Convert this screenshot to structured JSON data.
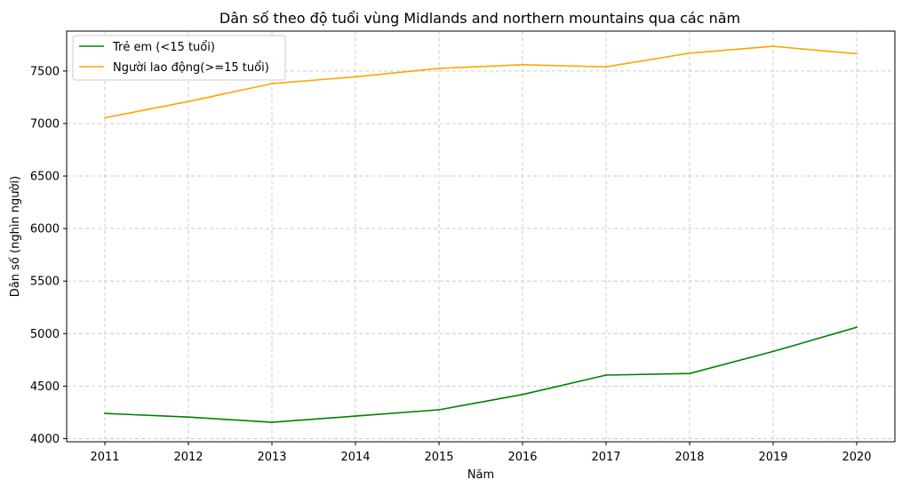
{
  "chart_data": {
    "type": "line",
    "title": "Dân số theo độ tuổi vùng Midlands and northern mountains qua các năm",
    "xlabel": "Năm",
    "ylabel": "Dân số (nghìn người)",
    "categories": [
      "2011",
      "2012",
      "2013",
      "2014",
      "2015",
      "2016",
      "2017",
      "2018",
      "2019",
      "2020"
    ],
    "yticks": [
      "4000",
      "4500",
      "5000",
      "5500",
      "6000",
      "6500",
      "7000",
      "7500"
    ],
    "ylim": [
      3970,
      7880
    ],
    "grid": true,
    "legend_position": "top-left",
    "series": [
      {
        "name": "Trẻ em (<15 tuổi)",
        "color": "#008000",
        "values": [
          4240,
          4205,
          4155,
          4215,
          4275,
          4420,
          4605,
          4620,
          4830,
          5060
        ]
      },
      {
        "name": "Người lao động(>=15 tuổi)",
        "color": "#FFA500",
        "values": [
          7055,
          7210,
          7380,
          7445,
          7525,
          7560,
          7540,
          7670,
          7735,
          7665
        ]
      }
    ]
  }
}
